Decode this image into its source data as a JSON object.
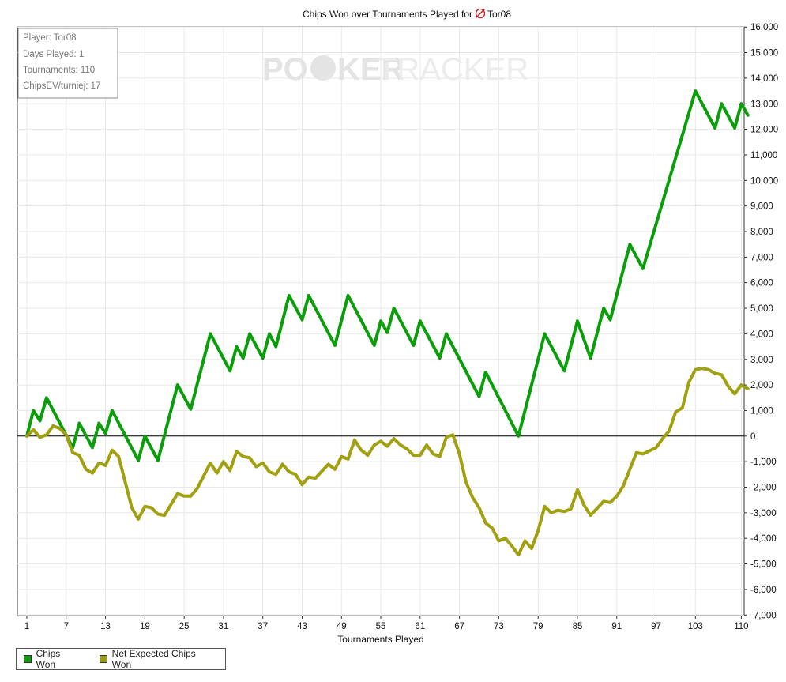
{
  "chart_data": {
    "type": "line",
    "title": "Chips Won over Tournaments Played for",
    "player_name": "Tor08",
    "watermark": {
      "part1": "PO",
      "part2": "KER",
      "part3": "TRACKER"
    },
    "xlabel": "Tournaments Played",
    "ylabel": "",
    "x_ticks": [
      "1",
      "7",
      "13",
      "19",
      "25",
      "31",
      "37",
      "43",
      "49",
      "55",
      "61",
      "67",
      "73",
      "79",
      "85",
      "91",
      "97",
      "103",
      "110"
    ],
    "y_ticks": [
      "16,000",
      "15,000",
      "14,000",
      "13,000",
      "12,000",
      "11,000",
      "10,000",
      "9,000",
      "8,000",
      "7,000",
      "6,000",
      "5,000",
      "4,000",
      "3,000",
      "2,000",
      "1,000",
      "0",
      "-1,000",
      "-2,000",
      "-3,000",
      "-4,000",
      "-5,000",
      "-6,000",
      "-7,000"
    ],
    "xlim": [
      0,
      110
    ],
    "ylim": [
      -7000,
      16000
    ],
    "grid": true,
    "legend_position": "bottom-left",
    "stats_box": [
      "Player: Tor08",
      "Days Played: 1",
      "Tournaments: 110",
      "ChipsEV/turniej: 17"
    ],
    "series": [
      {
        "name": "Chips Won",
        "color": "#0a9e0a",
        "points": [
          [
            0,
            0
          ],
          [
            1,
            1000
          ],
          [
            2,
            600
          ],
          [
            3,
            1500
          ],
          [
            7,
            -450
          ],
          [
            8,
            500
          ],
          [
            10,
            -450
          ],
          [
            11,
            500
          ],
          [
            12,
            100
          ],
          [
            13,
            1000
          ],
          [
            17,
            -950
          ],
          [
            18,
            0
          ],
          [
            20,
            -950
          ],
          [
            23,
            2000
          ],
          [
            25,
            1050
          ],
          [
            28,
            4000
          ],
          [
            31,
            2550
          ],
          [
            32,
            3500
          ],
          [
            33,
            3050
          ],
          [
            34,
            4000
          ],
          [
            36,
            3050
          ],
          [
            37,
            4000
          ],
          [
            38,
            3500
          ],
          [
            40,
            5500
          ],
          [
            42,
            4550
          ],
          [
            43,
            5500
          ],
          [
            47,
            3550
          ],
          [
            49,
            5500
          ],
          [
            53,
            3550
          ],
          [
            54,
            4500
          ],
          [
            55,
            4050
          ],
          [
            56,
            5000
          ],
          [
            59,
            3550
          ],
          [
            60,
            4500
          ],
          [
            63,
            3050
          ],
          [
            64,
            4000
          ],
          [
            69,
            1550
          ],
          [
            70,
            2500
          ],
          [
            75,
            0
          ],
          [
            79,
            4000
          ],
          [
            82,
            2550
          ],
          [
            84,
            4500
          ],
          [
            86,
            3050
          ],
          [
            88,
            5000
          ],
          [
            89,
            4550
          ],
          [
            92,
            7500
          ],
          [
            94,
            6550
          ],
          [
            102,
            13500
          ],
          [
            105,
            12050
          ],
          [
            106,
            13000
          ],
          [
            108,
            12050
          ],
          [
            109,
            13000
          ],
          [
            110,
            12550
          ]
        ]
      },
      {
        "name": "Net Expected Chips Won",
        "color": "#a0a010",
        "points": [
          [
            0,
            0
          ],
          [
            1,
            250
          ],
          [
            2,
            -50
          ],
          [
            3,
            50
          ],
          [
            4,
            400
          ],
          [
            5,
            300
          ],
          [
            6,
            50
          ],
          [
            7,
            -650
          ],
          [
            8,
            -750
          ],
          [
            9,
            -1300
          ],
          [
            10,
            -1450
          ],
          [
            11,
            -1050
          ],
          [
            12,
            -1150
          ],
          [
            13,
            -550
          ],
          [
            14,
            -800
          ],
          [
            16,
            -2800
          ],
          [
            17,
            -3250
          ],
          [
            18,
            -2750
          ],
          [
            19,
            -2800
          ],
          [
            20,
            -3050
          ],
          [
            21,
            -3100
          ],
          [
            23,
            -2250
          ],
          [
            24,
            -2350
          ],
          [
            25,
            -2350
          ],
          [
            26,
            -2050
          ],
          [
            28,
            -1050
          ],
          [
            29,
            -1450
          ],
          [
            30,
            -1000
          ],
          [
            31,
            -1350
          ],
          [
            32,
            -600
          ],
          [
            33,
            -800
          ],
          [
            34,
            -850
          ],
          [
            35,
            -1200
          ],
          [
            36,
            -1050
          ],
          [
            37,
            -1400
          ],
          [
            38,
            -1500
          ],
          [
            39,
            -1100
          ],
          [
            40,
            -1400
          ],
          [
            41,
            -1500
          ],
          [
            42,
            -1900
          ],
          [
            43,
            -1600
          ],
          [
            44,
            -1650
          ],
          [
            46,
            -1100
          ],
          [
            47,
            -1300
          ],
          [
            48,
            -800
          ],
          [
            49,
            -900
          ],
          [
            50,
            -150
          ],
          [
            51,
            -550
          ],
          [
            52,
            -750
          ],
          [
            53,
            -350
          ],
          [
            54,
            -200
          ],
          [
            55,
            -400
          ],
          [
            56,
            -100
          ],
          [
            57,
            -350
          ],
          [
            58,
            -500
          ],
          [
            59,
            -750
          ],
          [
            60,
            -750
          ],
          [
            61,
            -350
          ],
          [
            62,
            -700
          ],
          [
            63,
            -800
          ],
          [
            64,
            -50
          ],
          [
            65,
            50
          ],
          [
            66,
            -700
          ],
          [
            67,
            -1800
          ],
          [
            68,
            -2400
          ],
          [
            69,
            -2800
          ],
          [
            70,
            -3400
          ],
          [
            71,
            -3600
          ],
          [
            72,
            -4100
          ],
          [
            73,
            -4000
          ],
          [
            74,
            -4300
          ],
          [
            75,
            -4650
          ],
          [
            76,
            -4100
          ],
          [
            77,
            -4400
          ],
          [
            78,
            -3700
          ],
          [
            79,
            -2750
          ],
          [
            80,
            -3000
          ],
          [
            81,
            -2900
          ],
          [
            82,
            -2950
          ],
          [
            83,
            -2850
          ],
          [
            84,
            -2100
          ],
          [
            85,
            -2700
          ],
          [
            86,
            -3100
          ],
          [
            88,
            -2550
          ],
          [
            89,
            -2600
          ],
          [
            90,
            -2350
          ],
          [
            91,
            -1950
          ],
          [
            92,
            -1300
          ],
          [
            93,
            -650
          ],
          [
            94,
            -700
          ],
          [
            96,
            -450
          ],
          [
            97,
            -100
          ],
          [
            98,
            200
          ],
          [
            99,
            950
          ],
          [
            100,
            1100
          ],
          [
            101,
            2100
          ],
          [
            102,
            2600
          ],
          [
            103,
            2650
          ],
          [
            104,
            2600
          ],
          [
            105,
            2450
          ],
          [
            106,
            2400
          ],
          [
            107,
            1950
          ],
          [
            108,
            1650
          ],
          [
            109,
            2000
          ],
          [
            110,
            1850
          ]
        ]
      }
    ]
  }
}
